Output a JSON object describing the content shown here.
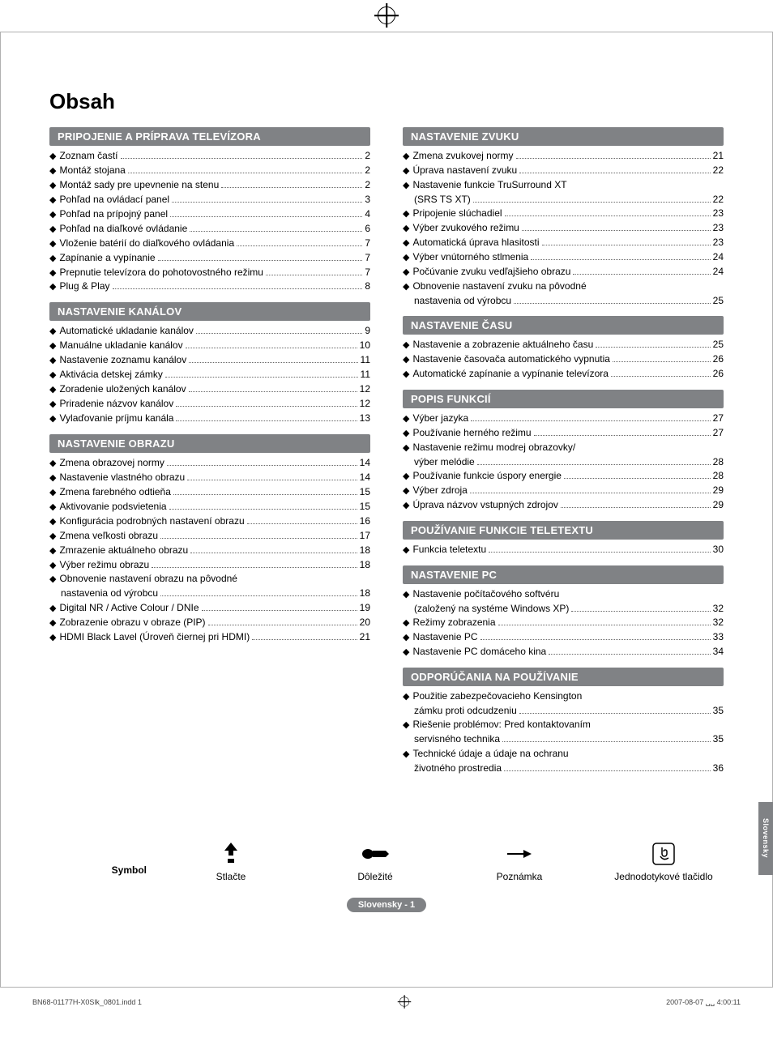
{
  "colors": {
    "section_header_bg": "#808285",
    "section_header_fg": "#ffffff",
    "text": "#000000",
    "page_bg": "#ffffff",
    "frame_border": "#b0b0b0",
    "dots": "#666666",
    "pill_bg": "#808285",
    "pill_fg": "#ffffff"
  },
  "typography": {
    "title_fontsize_pt": 20,
    "section_header_fontsize_pt": 10,
    "body_fontsize_pt": 9,
    "font_family": "Arial"
  },
  "page": {
    "title": "Obsah",
    "side_tab": "Slovensky",
    "page_pill": "Slovensky - 1",
    "footer_left": "BN68-01177H-X0Slk_0801.indd   1",
    "footer_right": "2007-08-07   ␣␣ 4:00:11"
  },
  "symbols": {
    "head": "Symbol",
    "items": [
      {
        "icon": "press-icon",
        "label": "Stlačte"
      },
      {
        "icon": "important-icon",
        "label": "Dôležité"
      },
      {
        "icon": "note-icon",
        "label": "Poznámka"
      },
      {
        "icon": "onetouch-icon",
        "label": "Jednodotykové tlačidlo"
      }
    ]
  },
  "left_sections": [
    {
      "header": "PRIPOJENIE A PRÍPRAVA TELEVÍZORA",
      "items": [
        {
          "t": "Zoznam častí",
          "p": "2"
        },
        {
          "t": "Montáž stojana",
          "p": "2"
        },
        {
          "t": "Montáž sady pre upevnenie na stenu",
          "p": "2"
        },
        {
          "t": "Pohľad na ovládací panel",
          "p": "3"
        },
        {
          "t": "Pohľad na prípojný panel",
          "p": "4"
        },
        {
          "t": "Pohľad na diaľkové ovládanie",
          "p": "6"
        },
        {
          "t": "Vloženie batérií do diaľkového ovládania",
          "p": "7"
        },
        {
          "t": "Zapínanie a vypínanie",
          "p": "7"
        },
        {
          "t": "Prepnutie televízora do pohotovostného režimu",
          "p": "7"
        },
        {
          "t": "Plug & Play",
          "p": "8"
        }
      ]
    },
    {
      "header": "NASTAVENIE KANÁLOV",
      "items": [
        {
          "t": "Automatické ukladanie kanálov",
          "p": "9"
        },
        {
          "t": "Manuálne ukladanie kanálov",
          "p": "10"
        },
        {
          "t": "Nastavenie zoznamu kanálov",
          "p": "11"
        },
        {
          "t": "Aktivácia detskej zámky",
          "p": "11"
        },
        {
          "t": "Zoradenie uložených kanálov",
          "p": "12"
        },
        {
          "t": "Priradenie názvov kanálov",
          "p": "12"
        },
        {
          "t": "Vylaďovanie príjmu kanála",
          "p": "13"
        }
      ]
    },
    {
      "header": "NASTAVENIE OBRAZU",
      "items": [
        {
          "t": "Zmena obrazovej normy",
          "p": "14"
        },
        {
          "t": "Nastavenie vlastného obrazu",
          "p": "14"
        },
        {
          "t": "Zmena farebného odtieňa",
          "p": "15"
        },
        {
          "t": "Aktivovanie podsvietenia",
          "p": "15"
        },
        {
          "t": "Konfigurácia podrobných nastavení obrazu",
          "p": "16"
        },
        {
          "t": "Zmena veľkosti obrazu",
          "p": "17"
        },
        {
          "t": "Zmrazenie aktuálneho obrazu",
          "p": "18"
        },
        {
          "t": "Výber režimu obrazu",
          "p": "18"
        },
        {
          "t": "Obnovenie nastavení obrazu na pôvodné",
          "nopage": true
        },
        {
          "t": "nastavenia od výrobcu",
          "p": "18",
          "indent": true
        },
        {
          "t": "Digital NR / Active Colour / DNIe",
          "p": "19"
        },
        {
          "t": "Zobrazenie obrazu v obraze (PIP)",
          "p": "20"
        },
        {
          "t": "HDMI Black Lavel (Úroveň čiernej pri HDMI)",
          "p": "21"
        }
      ]
    }
  ],
  "right_sections": [
    {
      "header": "NASTAVENIE ZVUKU",
      "items": [
        {
          "t": "Zmena zvukovej normy",
          "p": "21"
        },
        {
          "t": "Úprava nastavení zvuku",
          "p": "22"
        },
        {
          "t": "Nastavenie funkcie TruSurround XT",
          "nopage": true
        },
        {
          "t": "(SRS TS XT)",
          "p": "22",
          "indent": true
        },
        {
          "t": "Pripojenie slúchadiel",
          "p": "23"
        },
        {
          "t": "Výber zvukového režimu",
          "p": "23"
        },
        {
          "t": "Automatická úprava hlasitosti",
          "p": "23"
        },
        {
          "t": "Výber vnútorného stlmenia",
          "p": "24"
        },
        {
          "t": "Počúvanie zvuku vedľajšieho obrazu",
          "p": "24"
        },
        {
          "t": "Obnovenie nastavení zvuku na pôvodné",
          "nopage": true
        },
        {
          "t": "nastavenia od výrobcu",
          "p": "25",
          "indent": true
        }
      ]
    },
    {
      "header": "NASTAVENIE ČASU",
      "items": [
        {
          "t": "Nastavenie a zobrazenie aktuálneho času",
          "p": "25"
        },
        {
          "t": "Nastavenie časovača automatického vypnutia",
          "p": "26"
        },
        {
          "t": "Automatické zapínanie a vypínanie televízora",
          "p": "26"
        }
      ]
    },
    {
      "header": "POPIS FUNKCIÍ",
      "items": [
        {
          "t": "Výber jazyka",
          "p": "27"
        },
        {
          "t": "Používanie herného režimu",
          "p": "27"
        },
        {
          "t": "Nastavenie režimu modrej obrazovky/",
          "nopage": true
        },
        {
          "t": "výber melódie",
          "p": "28",
          "indent": true
        },
        {
          "t": "Používanie funkcie úspory energie",
          "p": "28"
        },
        {
          "t": "Výber zdroja",
          "p": "29"
        },
        {
          "t": "Úprava názvov vstupných zdrojov",
          "p": "29"
        }
      ]
    },
    {
      "header": "POUŽÍVANIE FUNKCIE TELETEXTU",
      "items": [
        {
          "t": "Funkcia teletextu",
          "p": "30"
        }
      ]
    },
    {
      "header": "NASTAVENIE PC",
      "items": [
        {
          "t": "Nastavenie počítačového softvéru",
          "nopage": true
        },
        {
          "t": "(založený na systéme Windows XP)",
          "p": "32",
          "indent": true
        },
        {
          "t": "Režimy zobrazenia",
          "p": "32"
        },
        {
          "t": "Nastavenie PC",
          "p": "33"
        },
        {
          "t": "Nastavenie PC domáceho kina",
          "p": "34"
        }
      ]
    },
    {
      "header": "ODPORÚČANIA NA POUŽÍVANIE",
      "items": [
        {
          "t": "Použitie zabezpečovacieho Kensington",
          "nopage": true
        },
        {
          "t": "zámku proti odcudzeniu",
          "p": "35",
          "indent": true
        },
        {
          "t": "Riešenie problémov: Pred kontaktovaním",
          "nopage": true
        },
        {
          "t": "servisného technika",
          "p": "35",
          "indent": true
        },
        {
          "t": "Technické údaje a údaje na ochranu",
          "nopage": true
        },
        {
          "t": "životného prostredia",
          "p": "36",
          "indent": true
        }
      ]
    }
  ]
}
